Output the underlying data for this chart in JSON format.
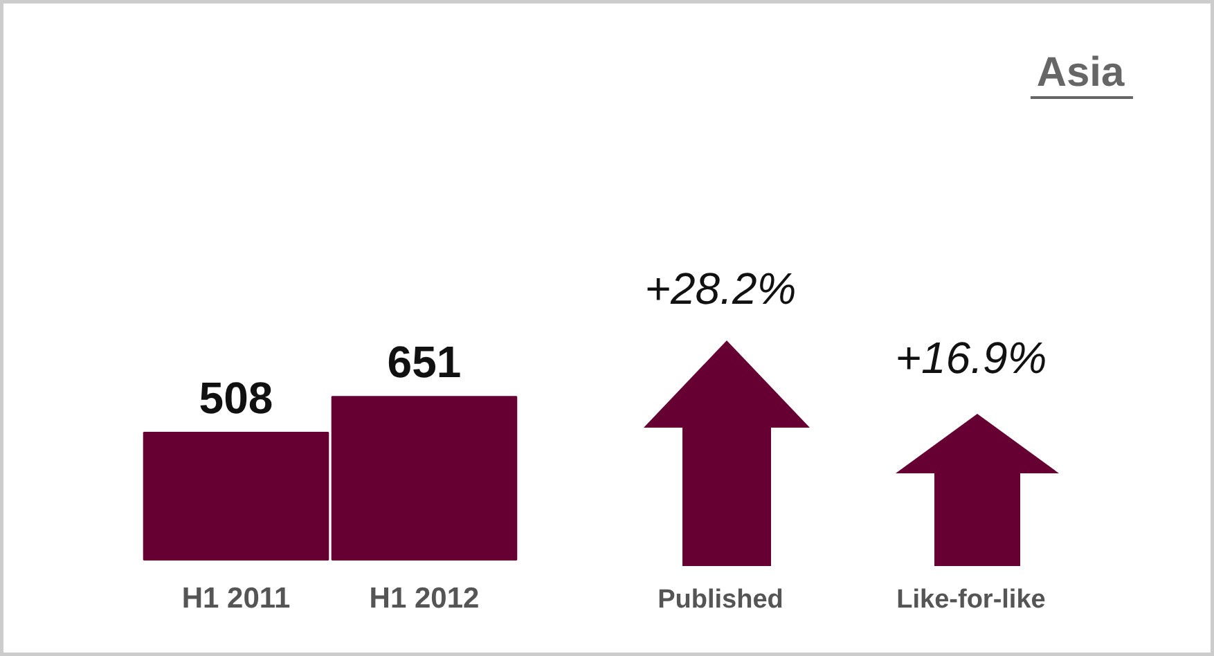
{
  "chart_data": {
    "type": "bar",
    "title": "Asia",
    "categories": [
      "H1 2011",
      "H1 2012"
    ],
    "values": [
      508,
      651
    ],
    "color": "#660033",
    "data_labels": true,
    "grid": false,
    "annotations": [
      "+28.2%",
      "Published",
      "+16.9%",
      "Like-for-like"
    ]
  }
}
